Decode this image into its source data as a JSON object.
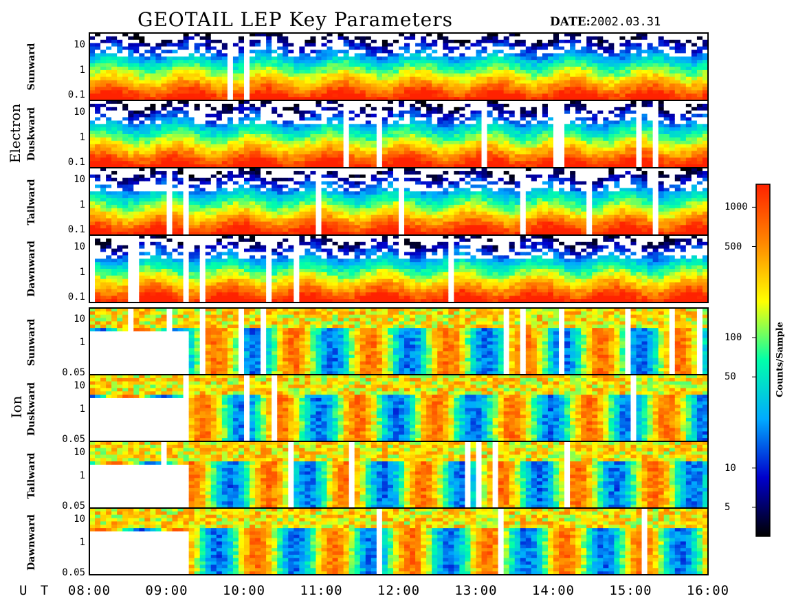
{
  "title": "GEOTAIL LEP Key Parameters",
  "date_label": "DATE:",
  "date_value": "2002.03.31",
  "chart_data": {
    "type": "heatmap",
    "x_axis_label": "U T",
    "x_ticks": [
      "08:00",
      "09:00",
      "10:00",
      "11:00",
      "12:00",
      "13:00",
      "14:00",
      "15:00",
      "16:00"
    ],
    "xlim": [
      "08:00",
      "16:00"
    ],
    "colorbar": {
      "label": "Counts/Sample",
      "scale": "log",
      "range": [
        3,
        1500
      ],
      "ticks": [
        "1000",
        "500",
        "100",
        "50",
        "10",
        "5"
      ],
      "tick_values": [
        1000,
        500,
        100,
        50,
        10,
        5
      ],
      "colors": [
        "#000000",
        "#0000cc",
        "#00aaff",
        "#00ffaa",
        "#ffff00",
        "#ff8800",
        "#ff2200"
      ]
    },
    "groups": [
      {
        "name": "Electron",
        "y_scale": "log",
        "y_ticks": [
          "10",
          "1",
          "0.1"
        ],
        "y_tick_values": [
          10,
          1,
          0.1
        ],
        "ylim": [
          0.06,
          30
        ],
        "panels": [
          "Sunward",
          "Duskward",
          "Tailward",
          "Dawnward"
        ]
      },
      {
        "name": "Ion",
        "y_scale": "log",
        "y_ticks": [
          "10",
          "1",
          "0.05"
        ],
        "y_tick_values": [
          10,
          1,
          0.05
        ],
        "ylim": [
          0.04,
          30
        ],
        "panels": [
          "Sunward",
          "Duskward",
          "Tailward",
          "Dawnward"
        ]
      }
    ]
  }
}
